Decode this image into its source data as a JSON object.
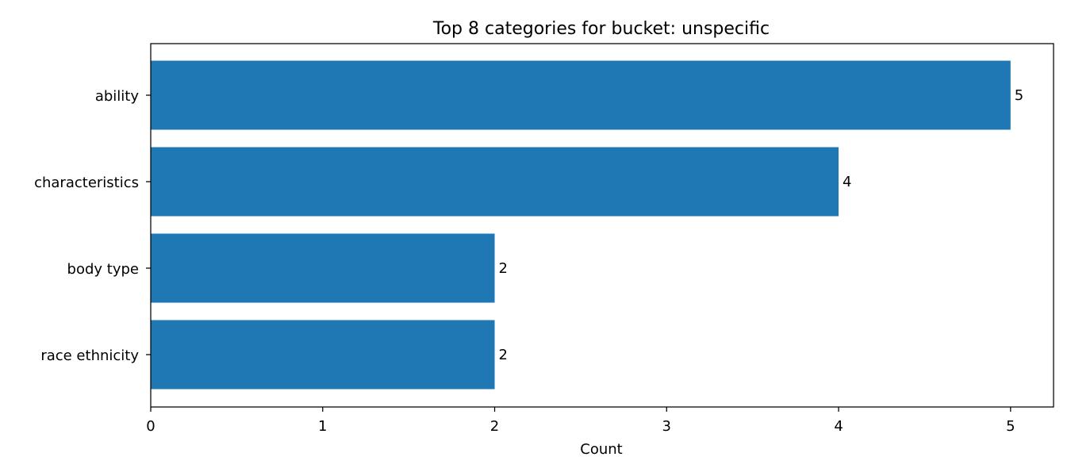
{
  "chart_data": {
    "type": "bar",
    "orientation": "horizontal",
    "title": "Top 8 categories for bucket: unspecific",
    "xlabel": "Count",
    "ylabel": "",
    "categories": [
      "ability",
      "characteristics",
      "body type",
      "race ethnicity"
    ],
    "values": [
      5,
      4,
      2,
      2
    ],
    "xlim": [
      0,
      5.25
    ],
    "xticks": [
      0,
      1,
      2,
      3,
      4,
      5
    ],
    "grid": false,
    "legend": "none",
    "bar_color": "#1f77b4"
  }
}
